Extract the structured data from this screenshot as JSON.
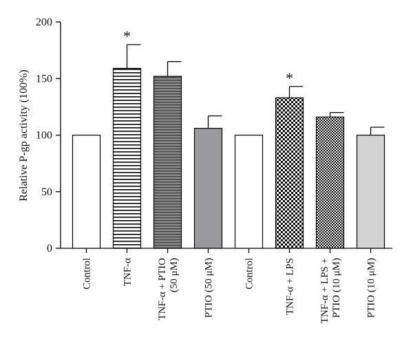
{
  "chart_data": {
    "type": "bar",
    "ylabel": "Relative P-gp activity (100%)",
    "ylim": [
      0,
      200
    ],
    "yticks": [
      0,
      50,
      100,
      150,
      200
    ],
    "grid": false,
    "legend": "none",
    "categories": [
      {
        "lines": [
          "Control"
        ]
      },
      {
        "lines": [
          "TNF-α"
        ]
      },
      {
        "lines": [
          "TNF-α + PTIO",
          "(50 μM)"
        ]
      },
      {
        "lines": [
          "PTIO (50 μM)"
        ]
      },
      {
        "lines": [
          "Control"
        ]
      },
      {
        "lines": [
          "TNF-α + LPS"
        ]
      },
      {
        "lines": [
          "TNF-α + LPS +",
          "PTIO (10 μM)"
        ]
      },
      {
        "lines": [
          "PTIO (10 μM)"
        ]
      }
    ],
    "values": [
      100,
      159,
      152,
      106,
      100,
      133,
      116,
      100
    ],
    "errors": [
      0,
      21,
      13,
      11,
      0,
      10,
      4,
      7
    ],
    "annotations": [
      "",
      "*",
      "",
      "",
      "",
      "*",
      "",
      ""
    ],
    "fills": [
      {
        "pattern": "none",
        "color": "#ffffff"
      },
      {
        "pattern": "horizontal-stripes",
        "color": "#000000"
      },
      {
        "pattern": "horizontal-stripes-grey",
        "color": "#666666"
      },
      {
        "pattern": "solid",
        "color": "#9a9a9e"
      },
      {
        "pattern": "none",
        "color": "#ffffff"
      },
      {
        "pattern": "checker-coarse",
        "color": "#000000"
      },
      {
        "pattern": "checker-fine",
        "color": "#000000"
      },
      {
        "pattern": "solid",
        "color": "#d3d3d3"
      }
    ]
  }
}
